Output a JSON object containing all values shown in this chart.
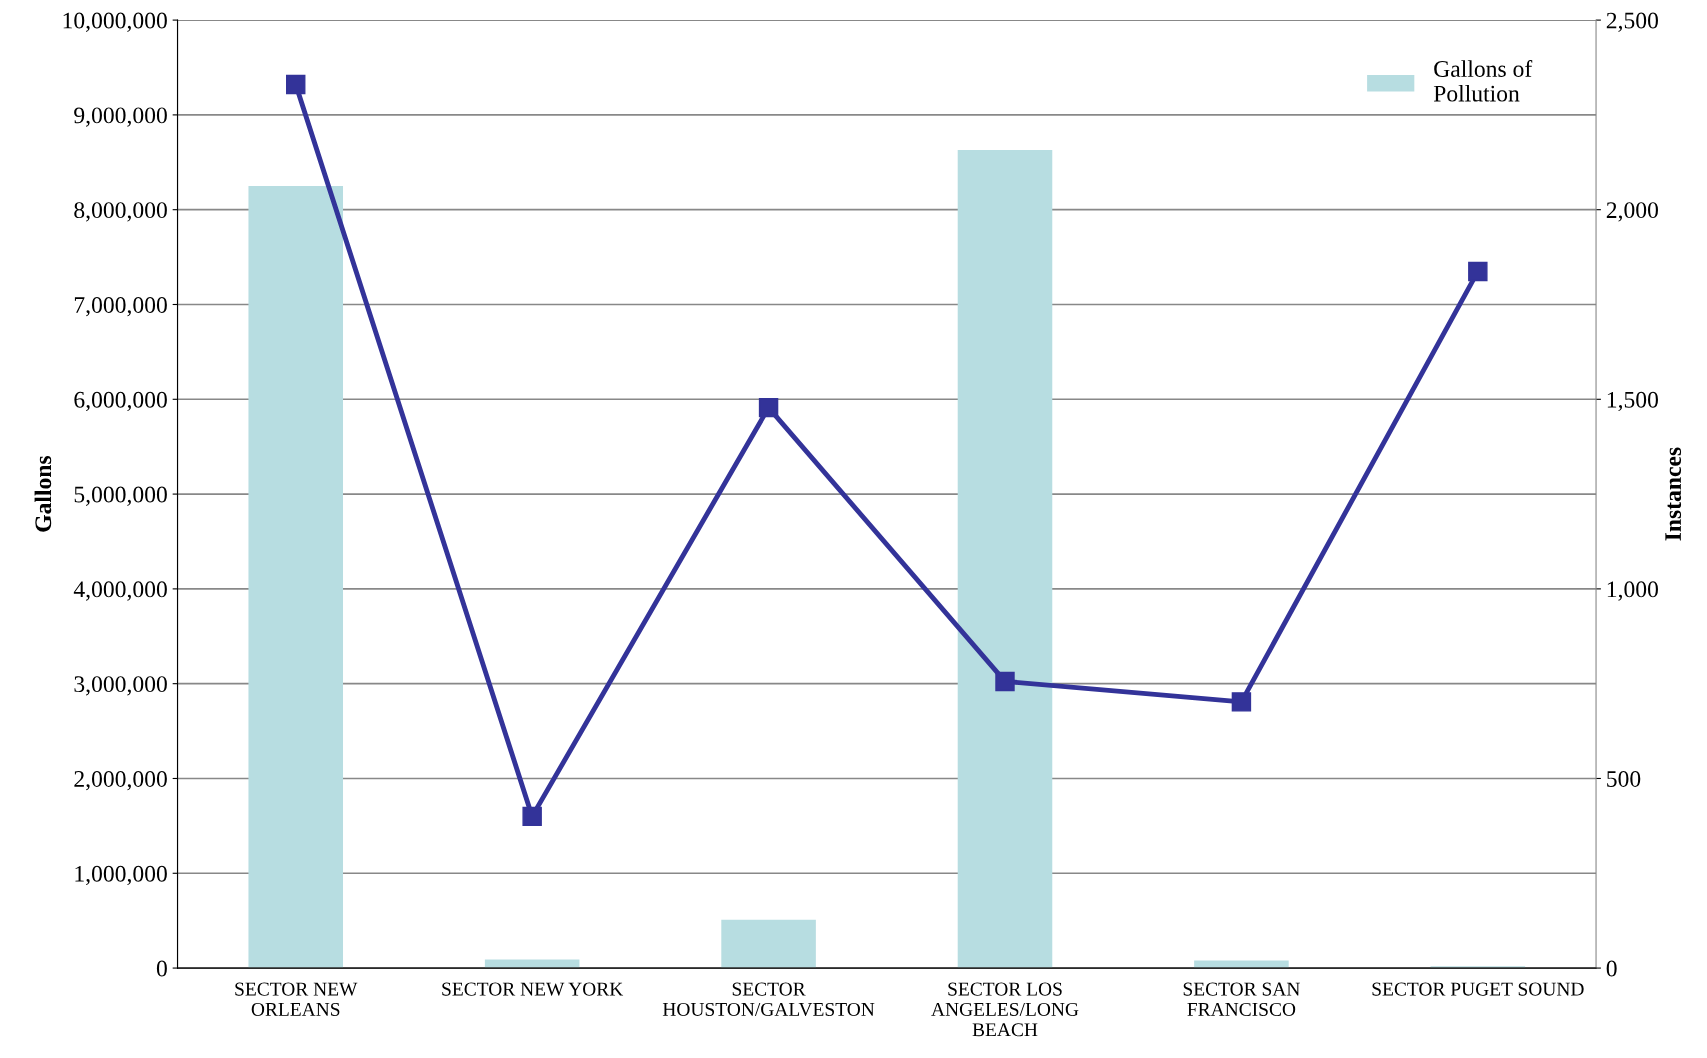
{
  "chart_data": {
    "type": "bar",
    "categories": [
      "SECTOR NEW\nORLEANS",
      "SECTOR NEW YORK",
      "SECTOR\nHOUSTON/GALVESTON",
      "SECTOR LOS\nANGELES/LONG\nBEACH",
      "SECTOR SAN\nFRANCISCO",
      "SECTOR PUGET SOUND"
    ],
    "series": [
      {
        "name": "Gallons of\nPollution",
        "color": "#b7dde1",
        "values": [
          8250000,
          90000,
          510000,
          8630000,
          80000,
          20000
        ]
      },
      {
        "type": "line",
        "axis": "y2",
        "color": "#333399",
        "marker": "square",
        "values": [
          2330,
          400,
          1478,
          756,
          702,
          1837
        ]
      }
    ],
    "ylabel": "Gallons",
    "y2label": "Instances",
    "ylim": [
      0,
      10000000
    ],
    "yticks": [
      0,
      {
        "value": 1000000,
        "label": "1,000,000"
      },
      {
        "value": 2000000,
        "label": "2,000,000"
      },
      {
        "value": 3000000,
        "label": "3,000,000"
      },
      {
        "value": 4000000,
        "label": "4,000,000"
      },
      {
        "value": 5000000,
        "label": "5,000,000"
      },
      {
        "value": 6000000,
        "label": "6,000,000"
      },
      {
        "value": 7000000,
        "label": "7,000,000"
      },
      {
        "value": 8000000,
        "label": "8,000,000"
      },
      {
        "value": 9000000,
        "label": "9,000,000"
      },
      {
        "value": 10000000,
        "label": "10,000,000"
      }
    ],
    "y2lim": [
      0,
      2500
    ],
    "y2ticks": [
      0,
      500,
      {
        "value": 1000,
        "label": "1,000"
      },
      {
        "value": 1500,
        "label": "1,500"
      },
      {
        "value": 2000,
        "label": "2,000"
      },
      {
        "value": 2500,
        "label": "2,500"
      }
    ],
    "grid": "y",
    "legend": "top right"
  }
}
